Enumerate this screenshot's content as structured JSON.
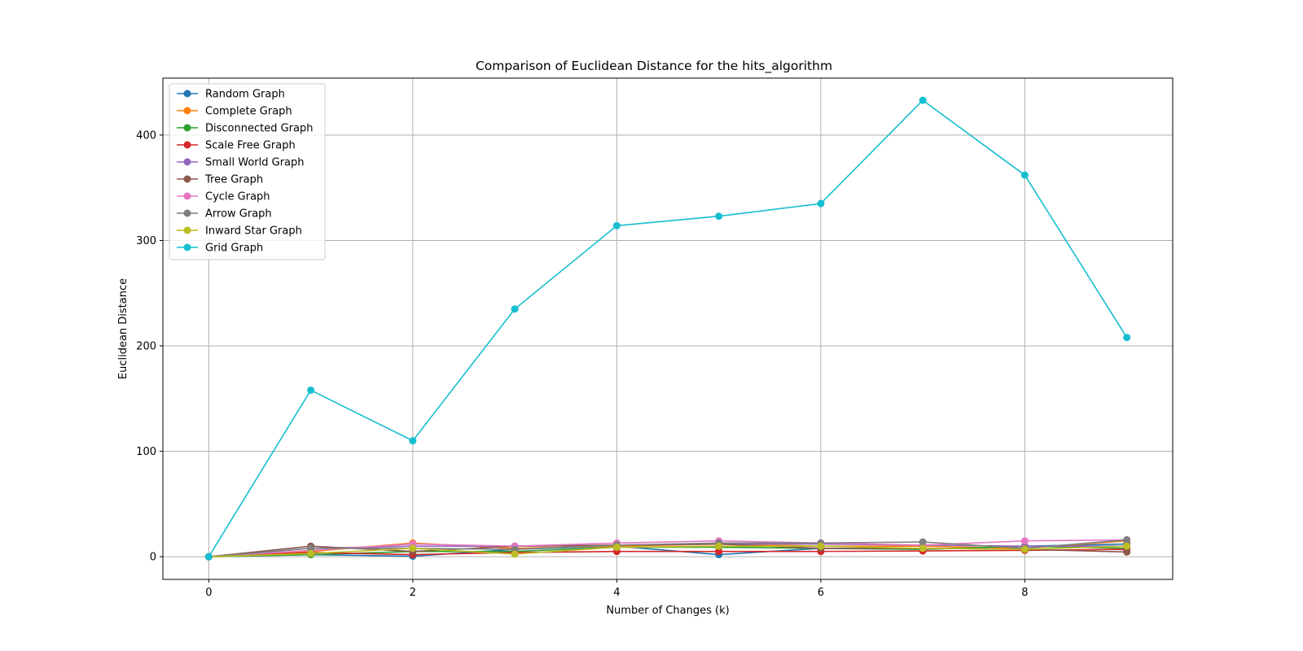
{
  "chart_data": {
    "type": "line",
    "title": "Comparison of Euclidean Distance for the hits_algorithm",
    "xlabel": "Number of Changes (k)",
    "ylabel": "Euclidean Distance",
    "x": [
      0,
      1,
      2,
      3,
      4,
      5,
      6,
      7,
      8,
      9
    ],
    "xlim": [
      -0.45,
      9.45
    ],
    "ylim": [
      -21.5,
      454
    ],
    "xticks": [
      0,
      2,
      4,
      6,
      8
    ],
    "yticks": [
      0,
      100,
      200,
      300,
      400
    ],
    "xtick_labels": [
      "0",
      "2",
      "4",
      "6",
      "8"
    ],
    "ytick_labels": [
      "0",
      "100",
      "200",
      "300",
      "400"
    ],
    "grid": true,
    "legend_position": "upper-left",
    "series": [
      {
        "name": "Random Graph",
        "color": "#1f77b4",
        "values": [
          0,
          2,
          0.5,
          7,
          10,
          2,
          8,
          7,
          10,
          12
        ]
      },
      {
        "name": "Complete Graph",
        "color": "#ff7f0e",
        "values": [
          0,
          5,
          13,
          8,
          10,
          12,
          10,
          10,
          8,
          15
        ]
      },
      {
        "name": "Disconnected Graph",
        "color": "#2ca02c",
        "values": [
          0,
          2,
          5,
          5,
          9,
          9,
          8,
          7,
          10,
          8
        ]
      },
      {
        "name": "Scale Free Graph",
        "color": "#d62728",
        "values": [
          0,
          4,
          2,
          4,
          5,
          5,
          5,
          5.5,
          6,
          7
        ]
      },
      {
        "name": "Small World Graph",
        "color": "#9467bd",
        "values": [
          0,
          8,
          10,
          10,
          11,
          12,
          12,
          11,
          10,
          10
        ]
      },
      {
        "name": "Tree Graph",
        "color": "#8c564b",
        "values": [
          0,
          10,
          5,
          10,
          11,
          12,
          8,
          8,
          7,
          4.5
        ]
      },
      {
        "name": "Cycle Graph",
        "color": "#e377c2",
        "values": [
          0,
          6,
          12,
          10,
          13,
          15,
          13,
          11,
          15,
          16
        ]
      },
      {
        "name": "Arrow Graph",
        "color": "#7f7f7f",
        "values": [
          0,
          8,
          8,
          7,
          11,
          13,
          13,
          14,
          8,
          16
        ]
      },
      {
        "name": "Inward Star Graph",
        "color": "#bcbd22",
        "values": [
          0,
          3,
          8,
          2.5,
          9,
          10,
          10,
          8,
          7,
          10
        ]
      },
      {
        "name": "Grid Graph",
        "color": "#17becf",
        "values": [
          0,
          158,
          110,
          235,
          314,
          323,
          335,
          433,
          362,
          208
        ]
      }
    ]
  }
}
